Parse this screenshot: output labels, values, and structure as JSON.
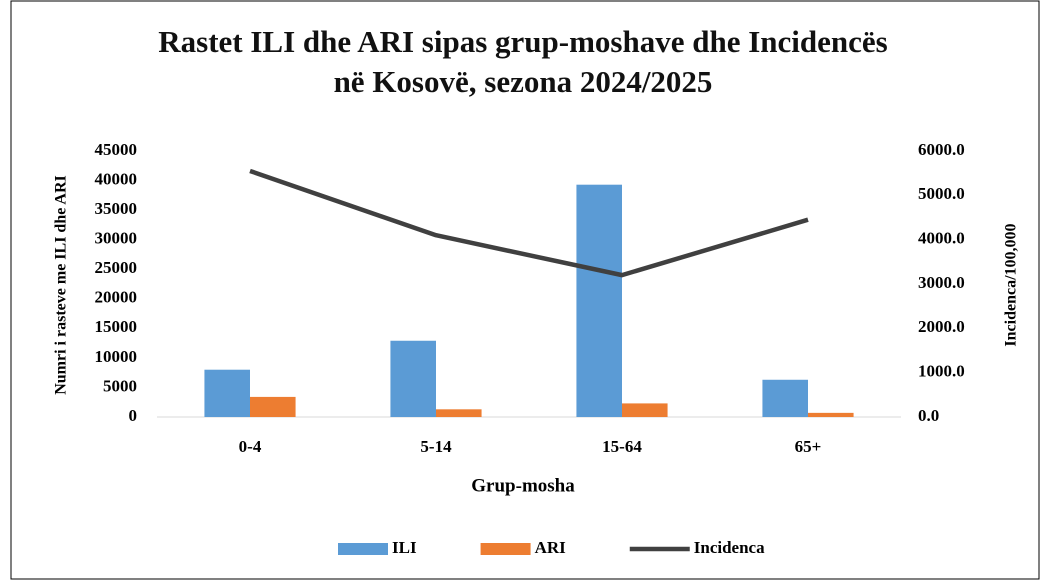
{
  "chart_data": {
    "type": "bar",
    "title": "Rastet ILI dhe ARI sipas grup-moshave dhe Incidencës në Kosovë, sezona 2024/2025",
    "x_label": "Grup-mosha",
    "y_label": "Numri i rasteve me ILI dhe ARI",
    "y2_label": "Incidenca/100,000",
    "categories": [
      "0-4",
      "5-14",
      "15-64",
      "65+"
    ],
    "series": [
      {
        "name": "ILI",
        "type": "bar",
        "color": "#5b9bd5",
        "values": [
          8000,
          12900,
          39300,
          6300
        ]
      },
      {
        "name": "ARI",
        "type": "bar",
        "color": "#ed7d31",
        "values": [
          3400,
          1300,
          2300,
          700
        ]
      },
      {
        "name": "Incidenca",
        "type": "line",
        "axis": "y2",
        "color": "#404040",
        "values": [
          5550,
          4100,
          3200,
          4450
        ]
      }
    ],
    "ylim": [
      0,
      45000
    ],
    "yticks": [
      0,
      5000,
      10000,
      15000,
      20000,
      25000,
      30000,
      35000,
      40000,
      45000
    ],
    "y2lim": [
      0,
      6000
    ],
    "y2ticks": [
      {
        "value": 0,
        "label": "0.0"
      },
      {
        "value": 1000,
        "label": "1000.0"
      },
      {
        "value": 2000,
        "label": "2000.0"
      },
      {
        "value": 3000,
        "label": "3000.0"
      },
      {
        "value": 4000,
        "label": "4000.0"
      },
      {
        "value": 5000,
        "label": "5000.0"
      },
      {
        "value": 6000,
        "label": "6000.0"
      }
    ],
    "grid": false,
    "legend": "bottom"
  }
}
